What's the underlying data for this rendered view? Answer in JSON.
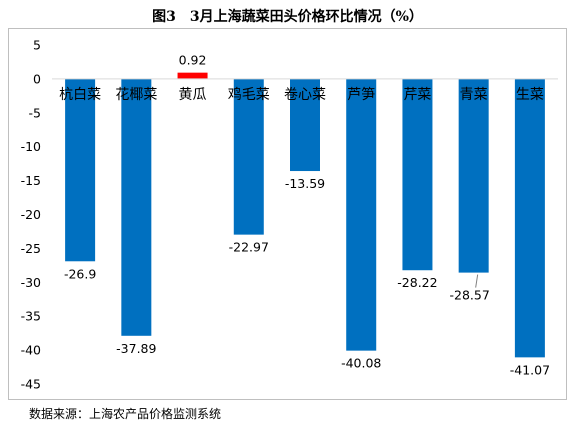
{
  "title": "图3　3月上海蔬菜田头价格环比情况（%）",
  "source": "数据来源：上海农产品价格监测系统",
  "chart_data": {
    "type": "bar",
    "categories": [
      "杭白菜",
      "花椰菜",
      "黄瓜",
      "鸡毛菜",
      "卷心菜",
      "芦笋",
      "芹菜",
      "青菜",
      "生菜"
    ],
    "values": [
      -26.9,
      -37.89,
      0.92,
      -22.97,
      -13.59,
      -40.08,
      -28.22,
      -28.57,
      -41.07
    ],
    "data_labels": [
      "-26.9",
      "-37.89",
      "0.92",
      "-22.97",
      "-13.59",
      "-40.08",
      "-28.22",
      "-28.57",
      "-41.07"
    ],
    "ylim": [
      -45,
      5
    ],
    "yticks": [
      5,
      0,
      -5,
      -10,
      -15,
      -20,
      -25,
      -30,
      -35,
      -40,
      -45
    ],
    "colors": {
      "negative": "#0070C0",
      "positive": "#FF0000"
    },
    "grid": false,
    "legend": "none"
  }
}
